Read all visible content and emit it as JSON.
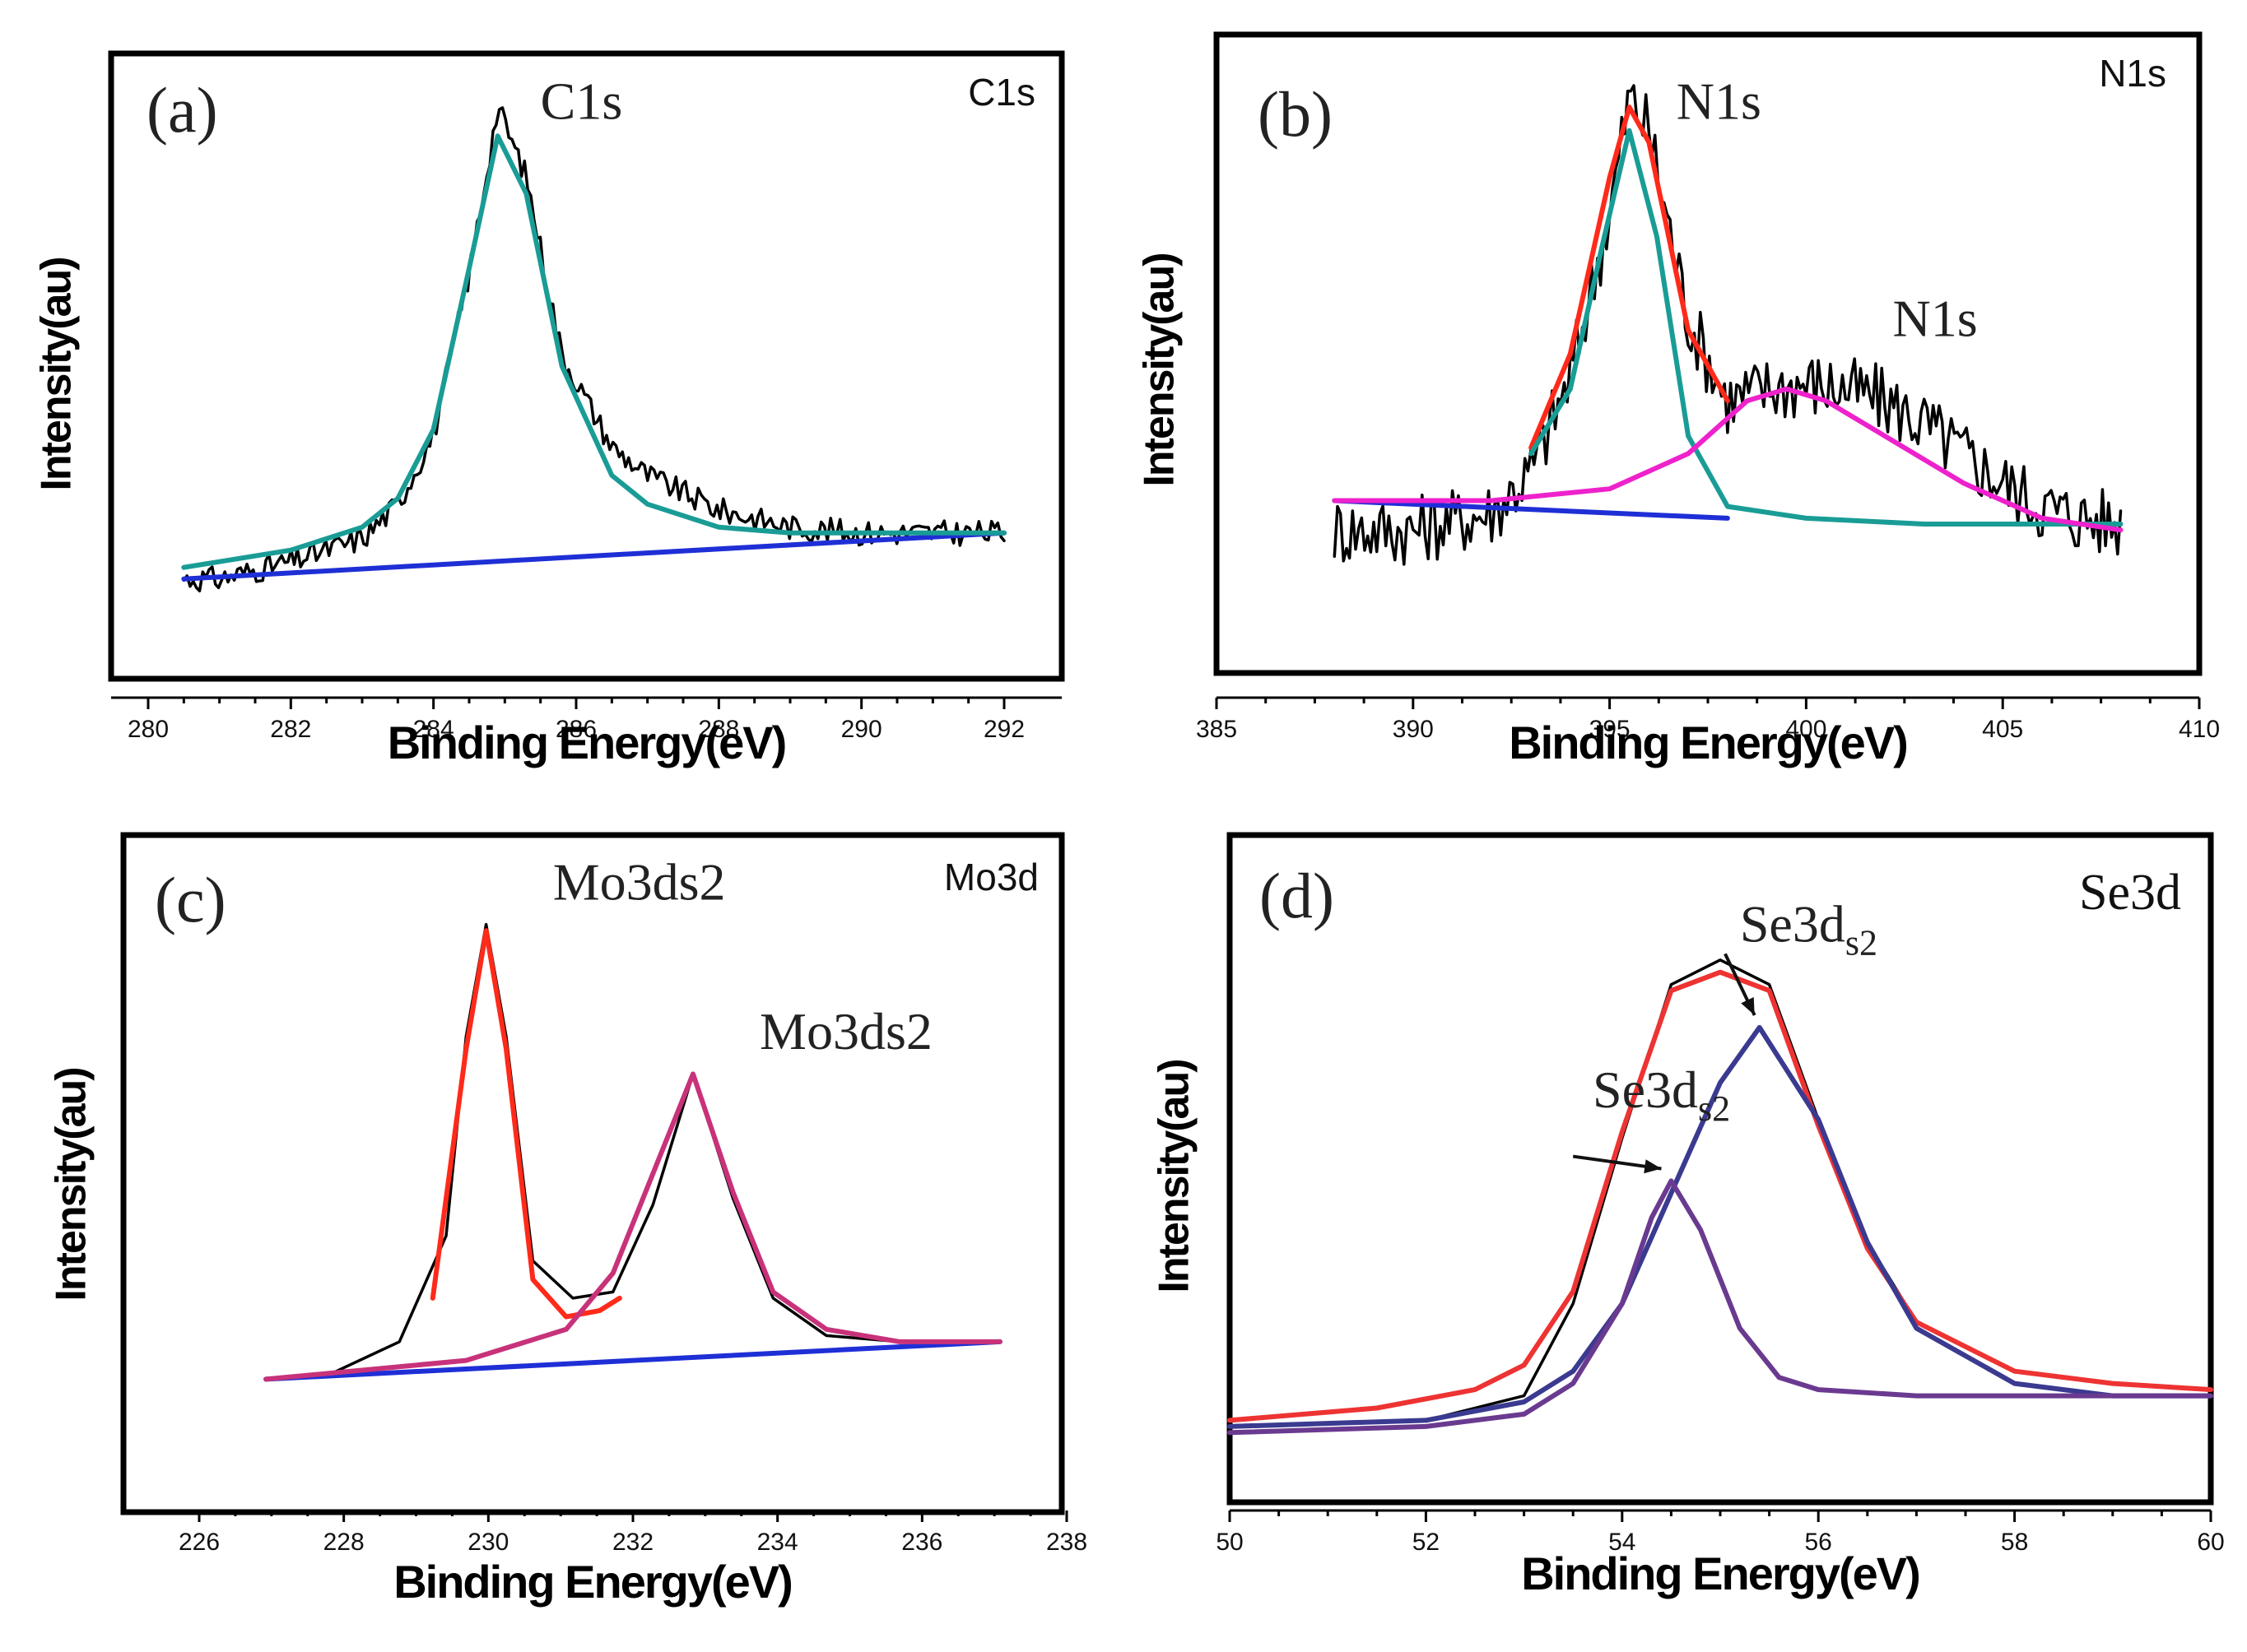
{
  "colors": {
    "raw": "#000000",
    "baseline": "#1f2fd6",
    "teal": "#1a9c96",
    "red": "#ff2a1a",
    "magenta": "#ee22cc",
    "mo_pink": "#c8327a",
    "se_red": "#ee3333",
    "se_blue": "#3a3a90",
    "se_purple": "#6a3a90"
  },
  "chart_data": [
    {
      "type": "line",
      "panel_label": "(a)",
      "corner_label": "C1s",
      "xlabel": "Binding Energy(eV)",
      "ylabel": "Intensity(au)",
      "xlim": [
        280,
        292
      ],
      "ylim": [
        0,
        1
      ],
      "xticks": [
        "280",
        "282",
        "284",
        "286",
        "288",
        "290",
        "292"
      ],
      "annotations": [
        {
          "text": "C1s",
          "x": 285.5,
          "y": 0.93
        }
      ],
      "series": [
        {
          "role": "raw",
          "color": "#000000",
          "kind": "noisy",
          "x": [
            280.5,
            281,
            282,
            283,
            283.5,
            284,
            284.5,
            284.9,
            285.3,
            285.8,
            286.5,
            287,
            288,
            289,
            290,
            291,
            292
          ],
          "y": [
            0.13,
            0.13,
            0.16,
            0.2,
            0.26,
            0.38,
            0.66,
            0.95,
            0.83,
            0.52,
            0.36,
            0.31,
            0.25,
            0.22,
            0.21,
            0.21,
            0.21
          ]
        },
        {
          "role": "baseline",
          "color": "#1f2fd6",
          "x": [
            280.5,
            292
          ],
          "y": [
            0.13,
            0.21
          ]
        },
        {
          "role": "fit",
          "color": "#1a9c96",
          "x": [
            280.5,
            281,
            282,
            283,
            283.5,
            284,
            284.5,
            284.9,
            285.3,
            285.8,
            286.5,
            287,
            288,
            289,
            290,
            291,
            292
          ],
          "y": [
            0.15,
            0.16,
            0.18,
            0.22,
            0.27,
            0.39,
            0.67,
            0.9,
            0.8,
            0.5,
            0.31,
            0.26,
            0.22,
            0.21,
            0.21,
            0.21,
            0.21
          ]
        }
      ]
    },
    {
      "type": "line",
      "panel_label": "(b)",
      "corner_label": "N1s",
      "xlabel": "Binding Energy(eV)",
      "ylabel": "Intensity(au)",
      "xlim": [
        385,
        410
      ],
      "ylim": [
        0,
        1
      ],
      "xticks": [
        "385",
        "390",
        "395",
        "400",
        "405",
        "410"
      ],
      "annotations": [
        {
          "text": "N1s",
          "x": 396.7,
          "y": 0.9
        },
        {
          "text": "N1s",
          "x": 402.2,
          "y": 0.53
        }
      ],
      "series": [
        {
          "role": "raw",
          "color": "#000000",
          "kind": "noisy",
          "x": [
            388,
            390,
            392,
            393,
            394,
            395,
            395.5,
            396,
            397,
            398,
            399,
            400,
            401,
            402,
            403,
            404,
            405,
            406,
            407,
            408
          ],
          "y": [
            0.2,
            0.2,
            0.23,
            0.3,
            0.46,
            0.74,
            0.94,
            0.88,
            0.56,
            0.42,
            0.44,
            0.45,
            0.44,
            0.42,
            0.38,
            0.33,
            0.28,
            0.24,
            0.22,
            0.21
          ]
        },
        {
          "role": "baseline",
          "color": "#1f2fd6",
          "x": [
            388,
            398
          ],
          "y": [
            0.25,
            0.22
          ]
        },
        {
          "role": "envelope",
          "color": "#ff2a1a",
          "x": [
            393,
            394,
            395,
            395.5,
            396,
            397,
            398
          ],
          "y": [
            0.34,
            0.5,
            0.8,
            0.92,
            0.86,
            0.54,
            0.42
          ]
        },
        {
          "role": "fit",
          "color": "#1a9c96",
          "x": [
            393,
            394,
            394.8,
            395.5,
            396.2,
            397,
            398,
            400,
            403,
            406,
            408
          ],
          "y": [
            0.33,
            0.44,
            0.68,
            0.88,
            0.7,
            0.36,
            0.24,
            0.22,
            0.21,
            0.21,
            0.21
          ]
        },
        {
          "role": "fit",
          "color": "#ee22cc",
          "x": [
            388,
            392,
            395,
            397,
            398.5,
            399.5,
            400.5,
            402,
            404,
            406,
            408
          ],
          "y": [
            0.25,
            0.25,
            0.27,
            0.33,
            0.42,
            0.44,
            0.42,
            0.36,
            0.28,
            0.22,
            0.2
          ]
        }
      ]
    },
    {
      "type": "line",
      "panel_label": "(c)",
      "corner_label": "Mo3d",
      "xlabel": "Binding Energy(eV)",
      "ylabel": "Intensity(au)",
      "xlim": [
        225,
        238
      ],
      "ylim": [
        0,
        1
      ],
      "xticks": [
        "226",
        "228",
        "230",
        "232",
        "234",
        "236",
        "238"
      ],
      "annotations": [
        {
          "text": "Mo3ds2",
          "x": 230.3,
          "y": 0.94
        },
        {
          "text": "Mo3ds2",
          "x": 233.4,
          "y": 0.7
        }
      ],
      "series": [
        {
          "role": "raw",
          "color": "#000000",
          "x": [
            226,
            227,
            228,
            228.7,
            229,
            229.3,
            229.6,
            230,
            230.6,
            231.2,
            231.8,
            232.4,
            233,
            233.6,
            234.4,
            235.5,
            237
          ],
          "y": [
            0.17,
            0.18,
            0.23,
            0.4,
            0.72,
            0.9,
            0.72,
            0.36,
            0.3,
            0.31,
            0.45,
            0.66,
            0.46,
            0.3,
            0.24,
            0.23,
            0.23
          ]
        },
        {
          "role": "baseline",
          "color": "#1f2fd6",
          "x": [
            226,
            237
          ],
          "y": [
            0.17,
            0.23
          ]
        },
        {
          "role": "fit",
          "color": "#ff2a1a",
          "x": [
            228.5,
            229,
            229.3,
            229.6,
            230,
            230.5,
            231,
            231.3
          ],
          "y": [
            0.3,
            0.7,
            0.89,
            0.7,
            0.33,
            0.27,
            0.28,
            0.3
          ]
        },
        {
          "role": "fit",
          "color": "#c8327a",
          "x": [
            226,
            229,
            230.5,
            231.2,
            231.8,
            232.4,
            233,
            233.6,
            234.4,
            235.5,
            237
          ],
          "y": [
            0.17,
            0.2,
            0.25,
            0.34,
            0.5,
            0.66,
            0.47,
            0.31,
            0.25,
            0.23,
            0.23
          ]
        }
      ]
    },
    {
      "type": "line",
      "panel_label": "(d)",
      "corner_label": "Se3d",
      "xlabel": "Binding Energy(eV)",
      "ylabel": "Intensity(au)",
      "xlim": [
        50,
        60
      ],
      "ylim": [
        0,
        1
      ],
      "xticks": [
        "50",
        "52",
        "54",
        "56",
        "58",
        "60"
      ],
      "annotations": [
        {
          "text": "Se3ds2",
          "x": 55.2,
          "y": 0.87
        },
        {
          "text": "Se3ds2",
          "x": 53.7,
          "y": 0.6
        }
      ],
      "series": [
        {
          "role": "raw",
          "color": "#000000",
          "x": [
            50,
            52,
            53,
            53.5,
            54,
            54.5,
            55,
            55.5,
            56,
            56.5,
            57,
            58,
            59,
            60
          ],
          "y": [
            0.08,
            0.09,
            0.13,
            0.28,
            0.55,
            0.8,
            0.84,
            0.8,
            0.58,
            0.38,
            0.25,
            0.17,
            0.15,
            0.14
          ]
        },
        {
          "role": "envelope",
          "color": "#ee3333",
          "x": [
            50,
            51.5,
            52.5,
            53,
            53.5,
            54,
            54.5,
            55,
            55.5,
            56,
            56.5,
            57,
            58,
            59,
            60
          ],
          "y": [
            0.09,
            0.11,
            0.14,
            0.18,
            0.3,
            0.56,
            0.79,
            0.82,
            0.79,
            0.57,
            0.37,
            0.25,
            0.17,
            0.15,
            0.14
          ]
        },
        {
          "role": "fit",
          "color": "#3a3a90",
          "x": [
            50,
            52,
            53,
            53.5,
            54,
            54.5,
            55,
            55.4,
            56,
            56.5,
            57,
            58,
            59,
            60
          ],
          "y": [
            0.08,
            0.09,
            0.12,
            0.17,
            0.28,
            0.46,
            0.64,
            0.73,
            0.58,
            0.38,
            0.24,
            0.15,
            0.13,
            0.13
          ]
        },
        {
          "role": "fit",
          "color": "#6a3a90",
          "x": [
            50,
            52,
            53,
            53.5,
            54,
            54.3,
            54.5,
            54.8,
            55.2,
            55.6,
            56,
            57,
            60
          ],
          "y": [
            0.07,
            0.08,
            0.1,
            0.15,
            0.28,
            0.42,
            0.48,
            0.4,
            0.24,
            0.16,
            0.14,
            0.13,
            0.13
          ]
        }
      ]
    }
  ]
}
